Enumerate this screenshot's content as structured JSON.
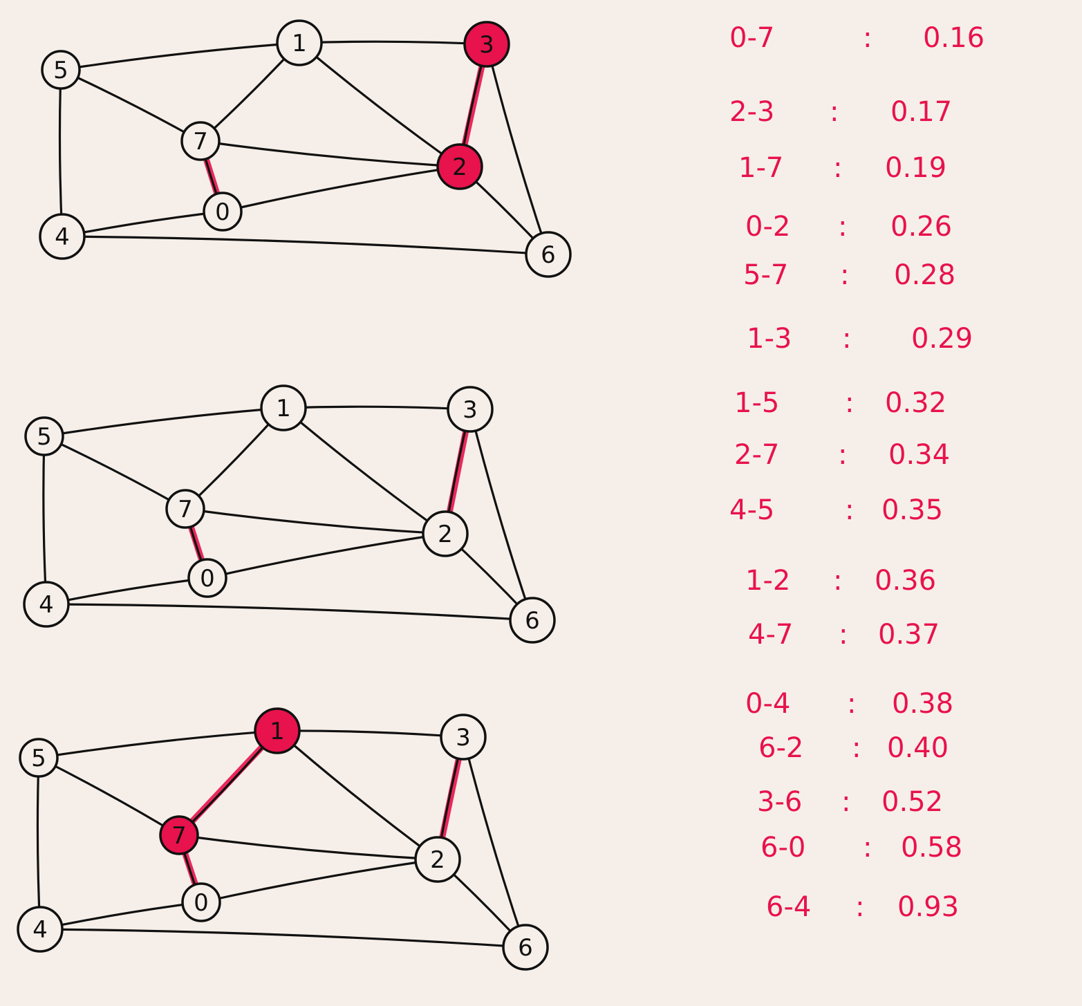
{
  "colors": {
    "background": "#f6efe9",
    "ink": "#111111",
    "highlight": "#e8124c",
    "node_fill": "#f6efe9"
  },
  "nodes": [
    {
      "id": "0",
      "label": "0"
    },
    {
      "id": "1",
      "label": "1"
    },
    {
      "id": "2",
      "label": "2"
    },
    {
      "id": "3",
      "label": "3"
    },
    {
      "id": "4",
      "label": "4"
    },
    {
      "id": "5",
      "label": "5"
    },
    {
      "id": "6",
      "label": "6"
    },
    {
      "id": "7",
      "label": "7"
    }
  ],
  "edges": [
    {
      "from": "5",
      "to": "1"
    },
    {
      "from": "1",
      "to": "3"
    },
    {
      "from": "5",
      "to": "7"
    },
    {
      "from": "1",
      "to": "7"
    },
    {
      "from": "1",
      "to": "2"
    },
    {
      "from": "7",
      "to": "2"
    },
    {
      "from": "3",
      "to": "2"
    },
    {
      "from": "3",
      "to": "6"
    },
    {
      "from": "7",
      "to": "0"
    },
    {
      "from": "0",
      "to": "2"
    },
    {
      "from": "5",
      "to": "4"
    },
    {
      "from": "4",
      "to": "0"
    },
    {
      "from": "2",
      "to": "6"
    },
    {
      "from": "4",
      "to": "6"
    }
  ],
  "steps": [
    {
      "highlighted_edges": [
        [
          "7",
          "0"
        ],
        [
          "3",
          "2"
        ]
      ],
      "highlighted_nodes": [
        "3",
        "2"
      ]
    },
    {
      "highlighted_edges": [
        [
          "7",
          "0"
        ],
        [
          "3",
          "2"
        ]
      ],
      "highlighted_nodes": []
    },
    {
      "highlighted_edges": [
        [
          "7",
          "0"
        ],
        [
          "3",
          "2"
        ],
        [
          "1",
          "7"
        ]
      ],
      "highlighted_nodes": [
        "1",
        "7"
      ]
    }
  ],
  "weights": [
    {
      "edge": "0-7",
      "colon": ":",
      "value": "0.16"
    },
    {
      "edge": "2-3",
      "colon": ":",
      "value": "0.17"
    },
    {
      "edge": "1-7",
      "colon": ":",
      "value": "0.19"
    },
    {
      "edge": "0-2",
      "colon": ":",
      "value": "0.26"
    },
    {
      "edge": "5-7",
      "colon": ":",
      "value": "0.28"
    },
    {
      "edge": "1-3",
      "colon": ":",
      "value": "0.29"
    },
    {
      "edge": "1-5",
      "colon": ":",
      "value": "0.32"
    },
    {
      "edge": "2-7",
      "colon": ":",
      "value": "0.34"
    },
    {
      "edge": "4-5",
      "colon": ":",
      "value": "0.35"
    },
    {
      "edge": "1-2",
      "colon": ":",
      "value": "0.36"
    },
    {
      "edge": "4-7",
      "colon": ":",
      "value": "0.37"
    },
    {
      "edge": "0-4",
      "colon": ":",
      "value": "0.38"
    },
    {
      "edge": "6-2",
      "colon": ":",
      "value": "0.40"
    },
    {
      "edge": "3-6",
      "colon": ":",
      "value": "0.52"
    },
    {
      "edge": "6-0",
      "colon": ":",
      "value": "0.58"
    },
    {
      "edge": "6-4",
      "colon": ":",
      "value": "0.93"
    }
  ]
}
